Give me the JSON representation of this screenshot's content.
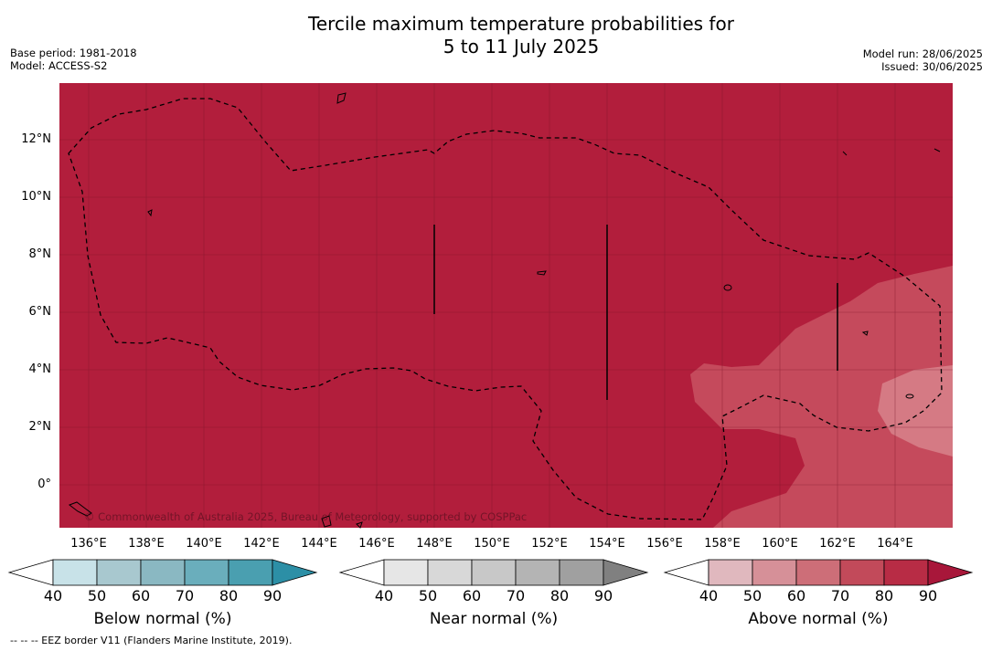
{
  "header": {
    "title_line1": "Tercile maximum temperature probabilities for",
    "title_line2": "5 to 11 July 2025",
    "base_period": "Base period: 1981-2018",
    "model": "Model: ACCESS-S2",
    "model_run": "Model run: 28/06/2025",
    "issued": "Issued: 30/06/2025"
  },
  "map": {
    "lat_labels": [
      "12°N",
      "10°N",
      "8°N",
      "6°N",
      "4°N",
      "2°N",
      "0°"
    ],
    "lon_labels": [
      "136°E",
      "138°E",
      "140°E",
      "142°E",
      "144°E",
      "146°E",
      "148°E",
      "150°E",
      "152°E",
      "154°E",
      "156°E",
      "158°E",
      "160°E",
      "162°E",
      "164°E"
    ],
    "copyright": "© Commonwealth of Australia 2025, Bureau of Meteorology, supported by COSPPac",
    "colors": {
      "above_90": "#b21e3c",
      "above_70": "#c54a5c",
      "above_60": "#d57a84"
    }
  },
  "colorbars": [
    {
      "title": "Below normal (%)",
      "ticks": [
        "40",
        "50",
        "60",
        "70",
        "80",
        "90"
      ],
      "colors": [
        "#ffffff",
        "#c8e2e8",
        "#a8c8cf",
        "#8ab8c2",
        "#6aaebc",
        "#4a9fb0",
        "#2c8fa6"
      ]
    },
    {
      "title": "Near normal (%)",
      "ticks": [
        "40",
        "50",
        "60",
        "70",
        "80",
        "90"
      ],
      "colors": [
        "#ffffff",
        "#e6e6e6",
        "#d8d8d8",
        "#c8c8c8",
        "#b4b4b4",
        "#a0a0a0",
        "#808080"
      ]
    },
    {
      "title": "Above normal (%)",
      "ticks": [
        "40",
        "50",
        "60",
        "70",
        "80",
        "90"
      ],
      "colors": [
        "#ffffff",
        "#e0b8be",
        "#d69098",
        "#cd6e78",
        "#c24a5a",
        "#b82c45",
        "#a8173a"
      ]
    }
  ],
  "footnote": "--  --  -- EEZ border V11 (Flanders Marine Institute, 2019)."
}
